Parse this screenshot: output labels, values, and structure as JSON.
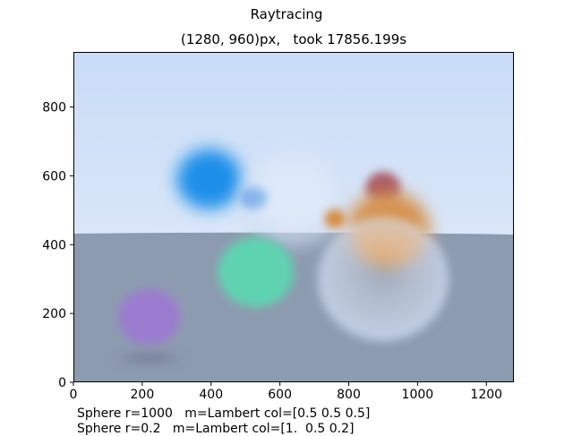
{
  "figure": {
    "title": "Raytracing",
    "subtitle": "(1280, 960)px,   took 17856.199s"
  },
  "chart_data": {
    "type": "image",
    "xlim": [
      0,
      1280
    ],
    "ylim": [
      0,
      960
    ],
    "x_ticks": [
      0,
      200,
      400,
      600,
      800,
      1000,
      1200
    ],
    "y_ticks": [
      0,
      200,
      400,
      600,
      800
    ],
    "grid": false,
    "scene": {
      "sky_colors": [
        "#c9dcf7",
        "#e6eef8"
      ],
      "ground_color": "#8d9bb0",
      "horizon_y": 432,
      "spheres": [
        {
          "name": "lambert-grey-ground",
          "cx": 640,
          "cy": -1000,
          "r": 1000,
          "color": "#8d9bb0"
        },
        {
          "name": "purple-sphere",
          "cx": 220,
          "cy": 190,
          "r": 90,
          "color": "#9b7bd0"
        },
        {
          "name": "blue-sphere",
          "cx": 395,
          "cy": 590,
          "r": 95,
          "color": "#1a8fea"
        },
        {
          "name": "small-blue-sphere",
          "cx": 525,
          "cy": 535,
          "r": 35,
          "color": "#2a7fe0"
        },
        {
          "name": "glass-sphere-far",
          "cx": 640,
          "cy": 540,
          "r": 150,
          "color": "#dde8fa"
        },
        {
          "name": "mint-metal-sphere",
          "cx": 530,
          "cy": 320,
          "r": 110,
          "color": "#5fd3b0"
        },
        {
          "name": "red-sphere",
          "cx": 900,
          "cy": 565,
          "r": 50,
          "color": "#a85a66"
        },
        {
          "name": "orange-sphere",
          "cx": 915,
          "cy": 445,
          "r": 120,
          "color": "#d69350"
        },
        {
          "name": "small-orange-sphere",
          "cx": 760,
          "cy": 475,
          "r": 30,
          "color": "#d68a3c"
        },
        {
          "name": "glass-sphere-near",
          "cx": 900,
          "cy": 300,
          "r": 190,
          "color": "#e8eef7"
        }
      ]
    }
  },
  "captions": [
    "Sphere r=1000   m=Lambert col=[0.5 0.5 0.5]",
    "Sphere r=0.2   m=Lambert col=[1.  0.5 0.2]"
  ]
}
